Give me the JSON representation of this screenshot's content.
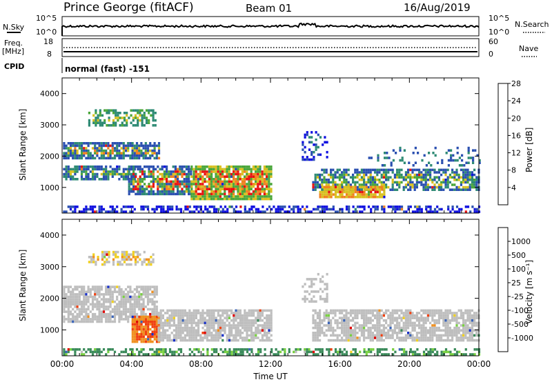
{
  "header": {
    "station": "Prince George (fitACF)",
    "beam": "Beam 01",
    "date": "16/Aug/2019"
  },
  "panels": {
    "nsky_label": "N.Sky",
    "nsearch_label": "N.Search",
    "nsky_ticks": [
      "10^5",
      "10^0"
    ],
    "nsearch_ticks": [
      "10^5",
      "10^0"
    ],
    "freq_label": "Freq.",
    "freq_unit": "[MHz]",
    "freq_ticks": [
      "18",
      "8"
    ],
    "nave_label": "Nave",
    "nave_ticks": [
      "60",
      "0"
    ],
    "cpid_label": "CPID",
    "cpid_text": "normal (fast) -151"
  },
  "chart_data": [
    {
      "type": "heatmap",
      "name": "power",
      "xlabel": "",
      "ylabel": "Slant Range [km]",
      "x_range_hours": [
        0,
        24
      ],
      "ylim": [
        180,
        4500
      ],
      "y_ticks": [
        "1000",
        "2000",
        "3000",
        "4000"
      ],
      "colorbar_label": "Power [dB]",
      "colorbar_ticks": [
        "4",
        "8",
        "12",
        "16",
        "20",
        "24",
        "28"
      ],
      "colors": [
        "#1010e0",
        "#2a4fb0",
        "#2e8a74",
        "#4aa63a",
        "#d8c020",
        "#f08020",
        "#e81010"
      ]
    },
    {
      "type": "heatmap",
      "name": "velocity",
      "xlabel": "Time UT",
      "ylabel": "Slant Range [km]",
      "x_ticks": [
        "00:00",
        "04:00",
        "08:00",
        "12:00",
        "16:00",
        "20:00",
        "00:00"
      ],
      "ylim": [
        180,
        4500
      ],
      "y_ticks": [
        "1000",
        "2000",
        "3000",
        "4000"
      ],
      "colorbar_label": "Velocity [m s⁻¹]",
      "colorbar_ticks": [
        "1000",
        "500",
        "100",
        "25",
        "-25",
        "-100",
        "-500",
        "-1000"
      ],
      "colors": [
        "#1830c8",
        "#3a64b8",
        "#3a8a5a",
        "#78d040",
        "#bebebe",
        "#f0d020",
        "#f09020",
        "#f04010",
        "#e00000"
      ]
    }
  ]
}
